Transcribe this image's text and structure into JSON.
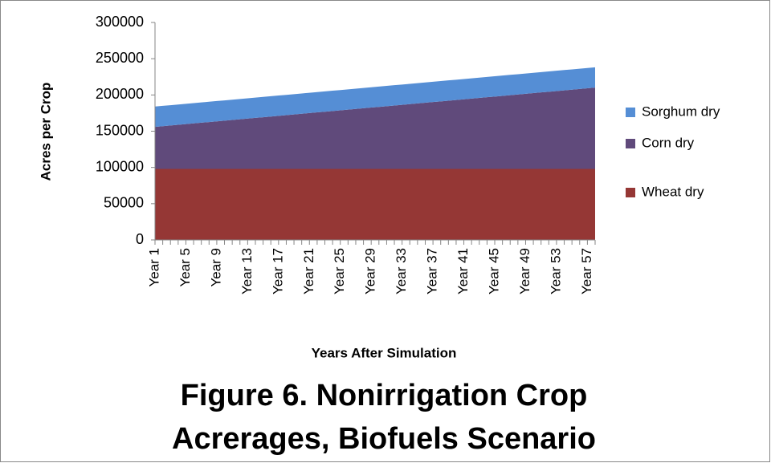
{
  "chart_data": {
    "type": "stacked_area",
    "title": [
      "Figure 6. Nonirrigation Crop",
      "Acrerages, Biofuels Scenario"
    ],
    "x_label": "Years After Simulation",
    "y_label": "Acres per Crop",
    "categories": [
      "Year 1",
      null,
      null,
      null,
      "Year 5",
      null,
      null,
      null,
      "Year 9",
      null,
      null,
      null,
      "Year 13",
      null,
      null,
      null,
      "Year 17",
      null,
      null,
      null,
      "Year 21",
      null,
      null,
      null,
      "Year 25",
      null,
      null,
      null,
      "Year 29",
      null,
      null,
      null,
      "Year 33",
      null,
      null,
      null,
      "Year 37",
      null,
      null,
      null,
      "Year 41",
      null,
      null,
      null,
      "Year 45",
      null,
      null,
      null,
      "Year 49",
      null,
      null,
      null,
      "Year 53",
      null,
      null,
      null,
      "Year 57",
      null
    ],
    "series": [
      {
        "name": "Wheat dry",
        "color": "#953735",
        "values": [
          98000,
          98000,
          98000,
          98000,
          98000,
          98000,
          98000,
          98000,
          98000,
          98000,
          98000,
          98000,
          98000,
          98000,
          98000,
          98000,
          98000,
          98000,
          98000,
          98000,
          98000,
          98000,
          98000,
          98000,
          98000,
          98000,
          98000,
          98000,
          98000,
          98000,
          98000,
          98000,
          98000,
          98000,
          98000,
          98000,
          98000,
          98000,
          98000,
          98000,
          98000,
          98000,
          98000,
          98000,
          98000,
          98000,
          98000,
          98000,
          98000,
          98000,
          98000,
          98000,
          98000,
          98000,
          98000,
          98000,
          98000,
          98000
        ]
      },
      {
        "name": "Corn dry",
        "color": "#604a7b",
        "values": [
          58000,
          58950,
          59900,
          60850,
          61800,
          62750,
          63700,
          64650,
          65600,
          66550,
          67500,
          68450,
          69400,
          70350,
          71300,
          72250,
          73200,
          74150,
          75100,
          76050,
          77000,
          77950,
          78900,
          79850,
          80800,
          81750,
          82700,
          83650,
          84600,
          85550,
          86500,
          87450,
          88400,
          89350,
          90300,
          91250,
          92200,
          93150,
          94100,
          95050,
          96000,
          96950,
          97900,
          98850,
          99800,
          100750,
          101700,
          102650,
          103600,
          104550,
          105500,
          106450,
          107400,
          108350,
          109300,
          110250,
          111200,
          112150
        ]
      },
      {
        "name": "Sorghum dry",
        "color": "#558ed5",
        "values": [
          28000,
          28000,
          28000,
          28000,
          28000,
          28000,
          28000,
          28000,
          28000,
          28000,
          28000,
          28000,
          28000,
          28000,
          28000,
          28000,
          28000,
          28000,
          28000,
          28000,
          28000,
          28000,
          28000,
          28000,
          28000,
          28000,
          28000,
          28000,
          28000,
          28000,
          28000,
          28000,
          28000,
          28000,
          28000,
          28000,
          28000,
          28000,
          28000,
          28000,
          28000,
          28000,
          28000,
          28000,
          28000,
          28000,
          28000,
          28000,
          28000,
          28000,
          28000,
          28000,
          28000,
          28000,
          28000,
          28000,
          28000,
          28000
        ]
      }
    ],
    "ylim": [
      0,
      300000
    ],
    "yticks": [
      0,
      50000,
      100000,
      150000,
      200000,
      250000,
      300000
    ],
    "grid": false,
    "legend": "right"
  }
}
